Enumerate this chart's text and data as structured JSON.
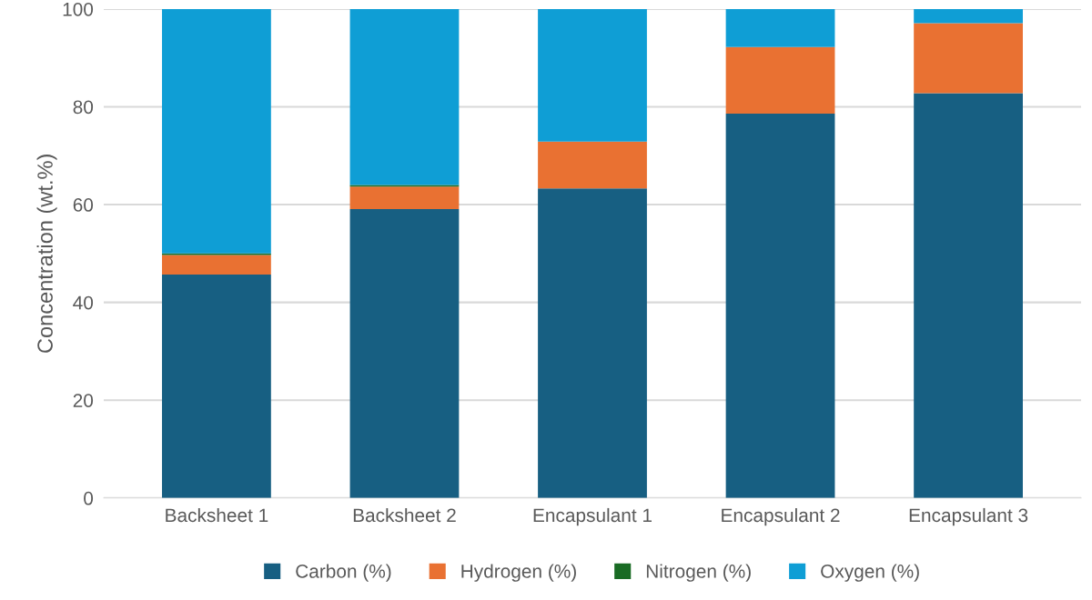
{
  "chart_data": {
    "type": "bar",
    "stacked": true,
    "ylabel": "Concentration (wt.%)",
    "categories": [
      "Backsheet 1",
      "Backsheet 2",
      "Encapsulant 1",
      "Encapsulant 2",
      "Encapsulant 3"
    ],
    "series": [
      {
        "name": "Carbon (%)",
        "color": "#175f82",
        "values": [
          45.7,
          59.1,
          63.3,
          78.6,
          82.8
        ]
      },
      {
        "name": "Hydrogen (%)",
        "color": "#e97132",
        "values": [
          4.0,
          4.6,
          9.6,
          13.6,
          14.3
        ]
      },
      {
        "name": "Nitrogen (%)",
        "color": "#196b24",
        "values": [
          0.3,
          0.3,
          0,
          0,
          0
        ]
      },
      {
        "name": "Oxygen (%)",
        "color": "#0f9ed5",
        "values": [
          50.0,
          36.0,
          27.1,
          7.8,
          2.9
        ]
      }
    ],
    "ylim": [
      0,
      100
    ],
    "yticks": [
      0,
      20,
      40,
      60,
      80,
      100
    ],
    "grid": "y",
    "legend": "bottom"
  }
}
